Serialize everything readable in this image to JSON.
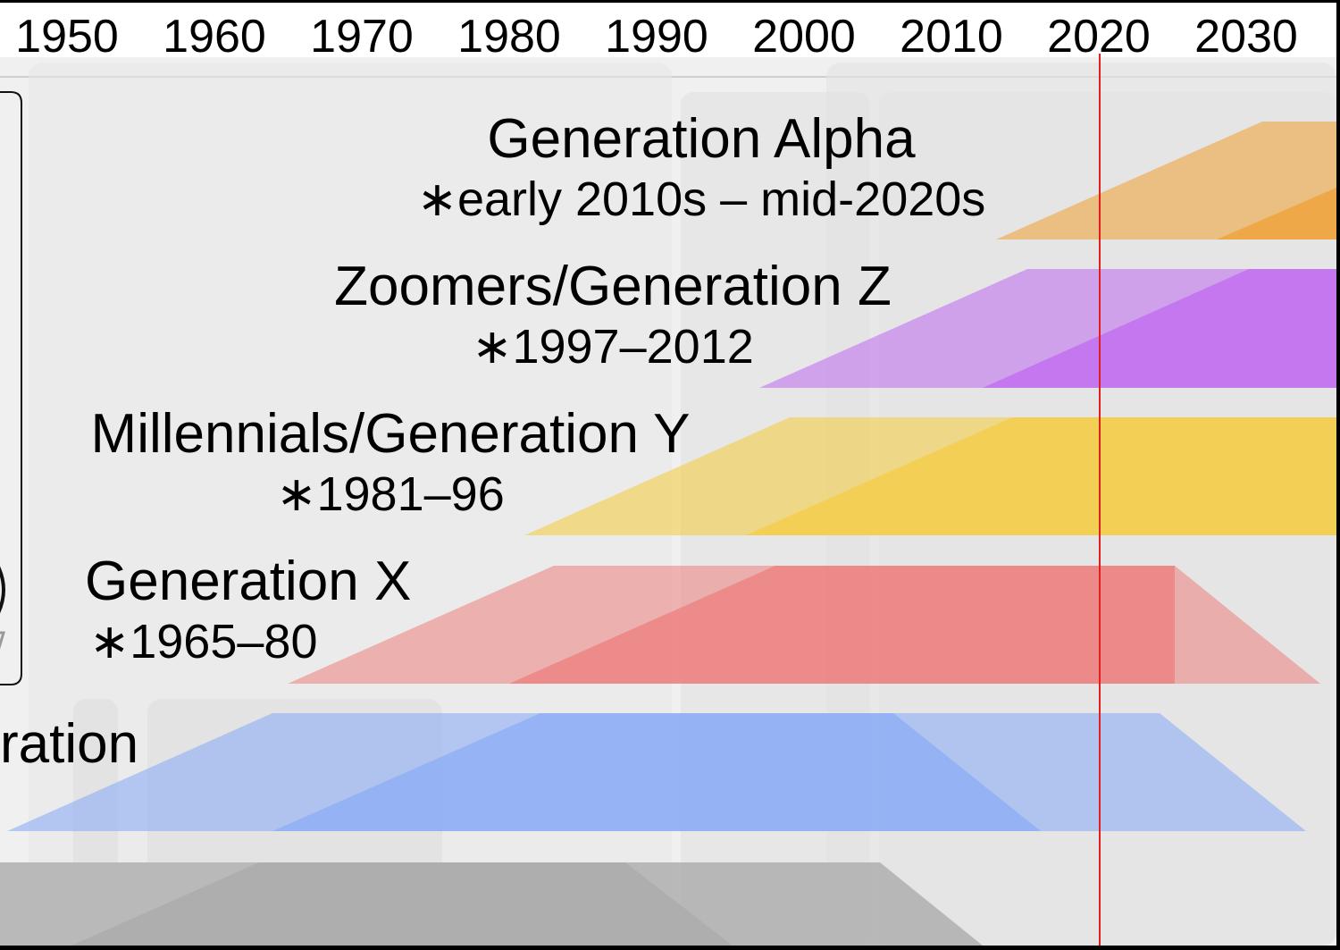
{
  "timeline": {
    "year_ticks": [
      "1950",
      "1960",
      "1970",
      "1980",
      "1990",
      "2000",
      "2010",
      "2020",
      "2030"
    ],
    "current_year": 2020
  },
  "generations": [
    {
      "id": "alpha",
      "name": "Generation Alpha",
      "range": "∗early 2010s – mid-2020s",
      "color": "#EEA43D"
    },
    {
      "id": "z",
      "name": "Zoomers/Generation Z",
      "range": "∗1997–2012",
      "color": "#C06AF0"
    },
    {
      "id": "y",
      "name": "Millennials/Generation Y",
      "range": "∗1981–96",
      "color": "#F5CD4A"
    },
    {
      "id": "x",
      "name": "Generation X",
      "range": "∗1965–80",
      "color": "#EC7F7D"
    },
    {
      "id": "boomers",
      "name": "ration",
      "range": "",
      "color": "#8CAEF5"
    }
  ],
  "colors": {
    "background": "#F0F0F0",
    "period_band": "#E3E3E3",
    "current_year_line": "#E02020",
    "older_generation": "#AEAEAE"
  }
}
